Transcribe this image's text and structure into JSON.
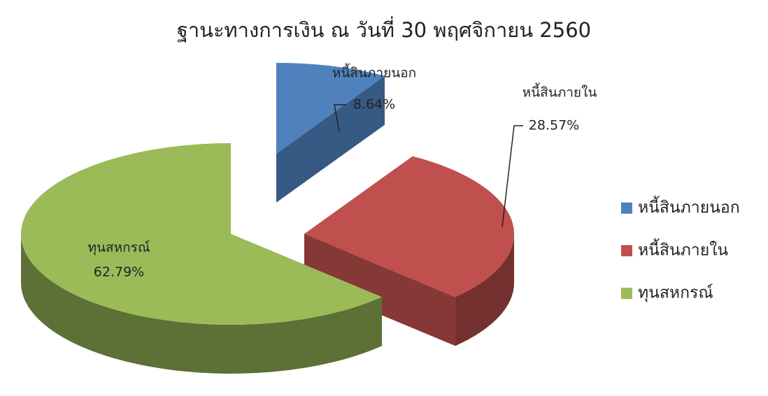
{
  "chart_data": {
    "type": "pie",
    "title": "ฐานะทางการเงิน ณ วันที่ 30 พฤศจิกายน 2560",
    "categories": [
      "หนี้สินภายนอก",
      "หนี้สินภายใน",
      "ทุนสหกรณ์"
    ],
    "values": [
      8.64,
      28.57,
      62.79
    ],
    "value_labels": [
      "8.64%",
      "28.57%",
      "62.79%"
    ],
    "colors": [
      "#4f81bd",
      "#c0504d",
      "#9bbb59"
    ],
    "legend": "right"
  }
}
